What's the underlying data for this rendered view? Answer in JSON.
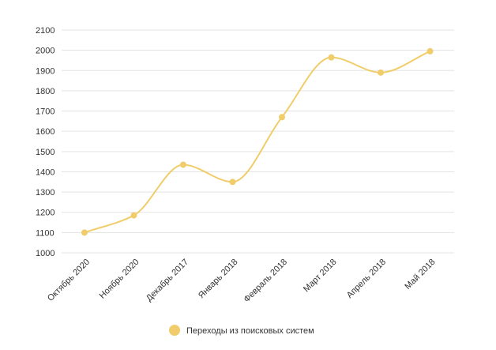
{
  "chart_data": {
    "type": "line",
    "categories": [
      "Октябрь 2020",
      "Ноябрь 2020",
      "Декабрь 2017",
      "Январь 2018",
      "Февраль 2018",
      "Март 2018",
      "Апрель 2018",
      "Май 2018"
    ],
    "series": [
      {
        "name": "Переходы из поисковых систем",
        "values": [
          1100,
          1185,
          1435,
          1350,
          1670,
          1965,
          1890,
          1995
        ]
      }
    ],
    "ylim": [
      1000,
      2100
    ],
    "yticks": [
      1000,
      1100,
      1200,
      1300,
      1400,
      1500,
      1600,
      1700,
      1800,
      1900,
      2000,
      2100
    ],
    "grid": true,
    "legend_position": "bottom",
    "color": "#f0cd6a"
  }
}
